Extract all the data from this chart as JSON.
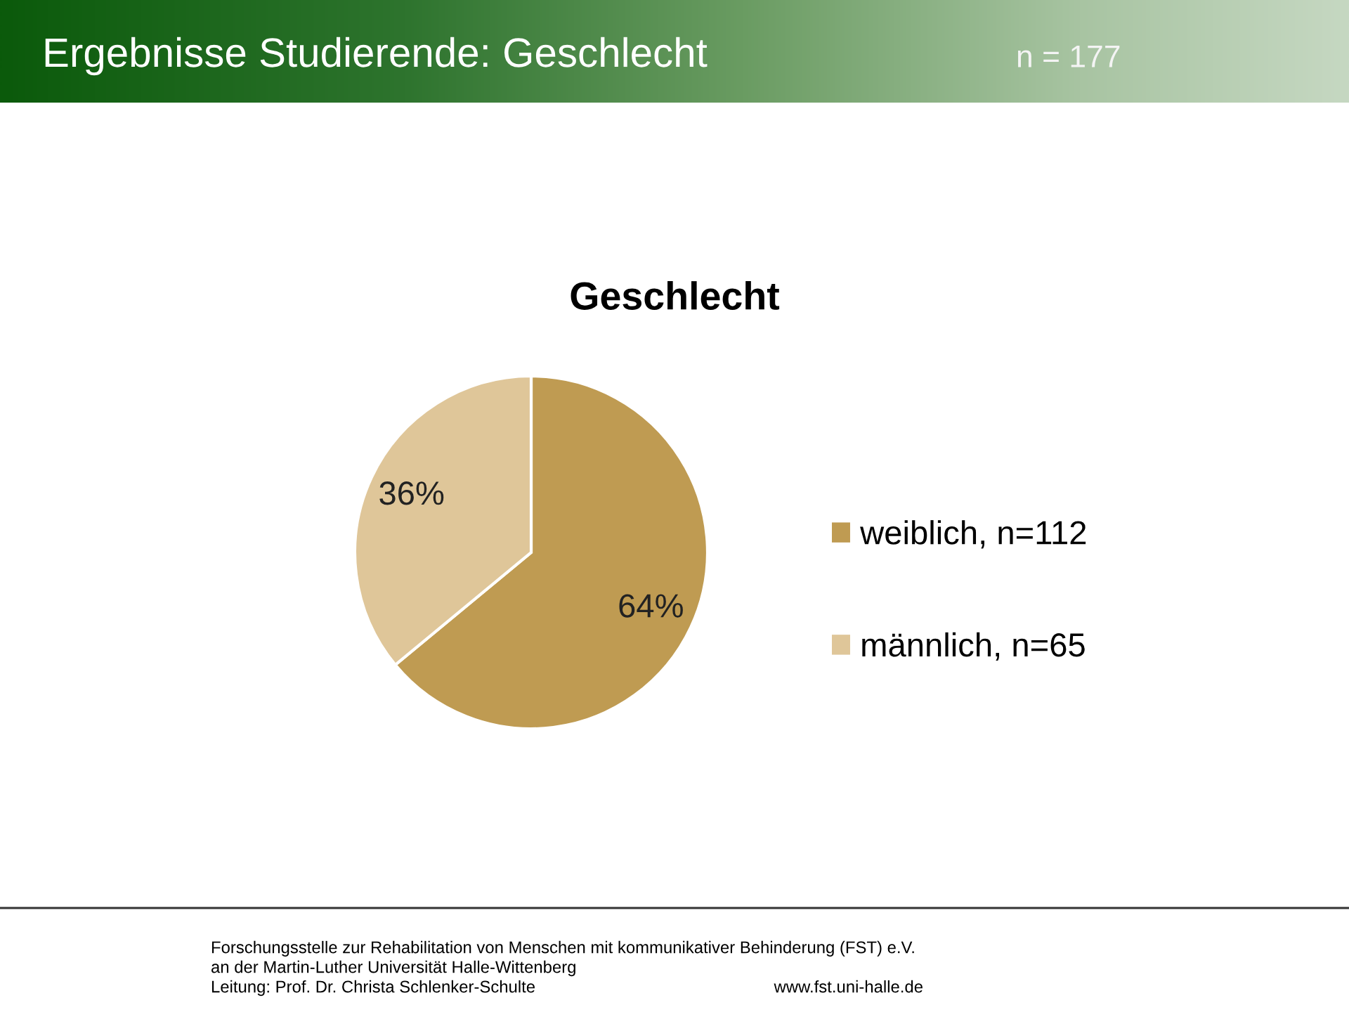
{
  "chart_data": {
    "type": "pie",
    "title": "Geschlecht",
    "categories": [
      "weiblich, n=112",
      "männlich, n=65"
    ],
    "values": [
      64,
      36
    ],
    "colors": [
      "#bf9b52",
      "#dfc699"
    ],
    "value_labels": [
      "64%",
      "36%"
    ],
    "legend": "right",
    "annotations": [
      "Ergebnisse Studierende: Geschlecht",
      "n = 177",
      "Forschungsstelle zur Rehabilitation von Menschen mit kommunikativer Behinderung (FST) e.V.",
      "an der Martin-Luther Universität Halle-Wittenberg",
      "Leitung: Prof. Dr. Christa Schlenker-Schulte",
      "www.fst.uni-halle.de"
    ]
  }
}
